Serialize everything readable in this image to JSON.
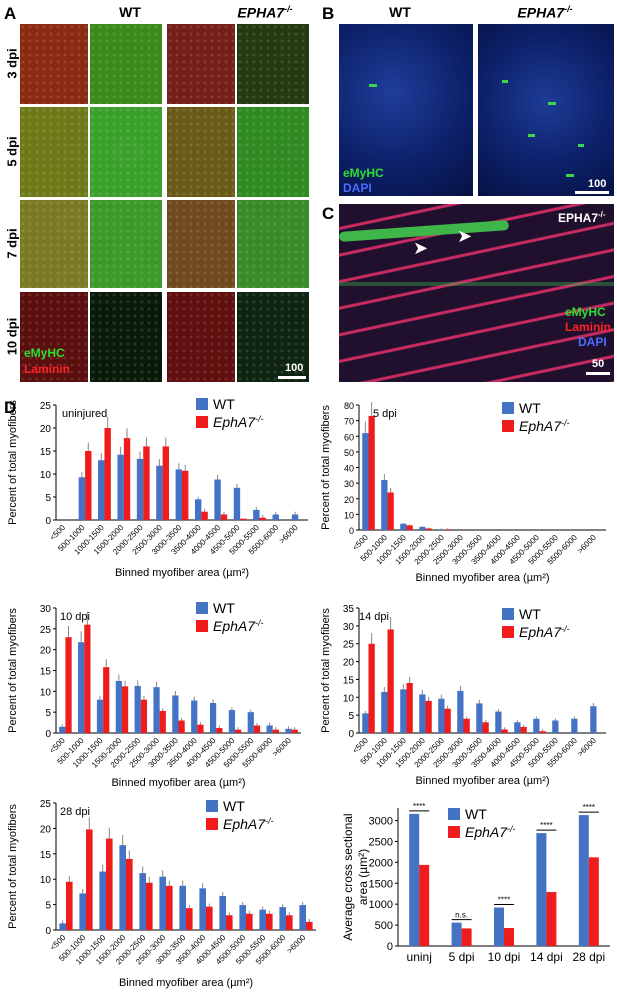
{
  "panels": {
    "A": "A",
    "B": "B",
    "C": "C",
    "D": "D"
  },
  "panelA": {
    "col_wt": "WT",
    "col_ko": "EPHA7",
    "col_ko_sup": "-/-",
    "rows": [
      "3 dpi",
      "5 dpi",
      "7 dpi",
      "10 dpi"
    ],
    "label_green": "eMyHC",
    "label_red": "Laminin",
    "scale": "100"
  },
  "panelB": {
    "col_wt": "WT",
    "col_ko": "EPHA7",
    "col_ko_sup": "-/-",
    "label_green": "eMyHC",
    "label_blue": "DAPI",
    "scale": "100"
  },
  "panelC": {
    "title": "EPHA7",
    "title_sup": "-/-",
    "label_green": "eMyHC",
    "label_red": "Laminin",
    "label_blue": "DAPI",
    "scale": "50"
  },
  "colors": {
    "wt": "#4472c4",
    "ko": "#ee1c1c"
  },
  "legend": {
    "wt": "WT",
    "ko": "EphA7",
    "ko_sup": "-/-"
  },
  "axis_text": {
    "ylabel": "Percent of total myofibers",
    "xlabel": "Binned myofiber area (µm²)",
    "bar_ylabel_1": "Average cross sectional",
    "bar_ylabel_2": "area (µm²)"
  },
  "chart_data": [
    {
      "type": "bar",
      "title": "uninjured",
      "categories": [
        "<500",
        "500-1000",
        "1000-1500",
        "1500-2000",
        "2000-2500",
        "2500-3000",
        "3000-3500",
        "3500-4000",
        "4000-4500",
        "4500-5000",
        "5000-5500",
        "5500-6000",
        ">6000"
      ],
      "ylim": [
        0,
        25
      ],
      "yticks": [
        0,
        5,
        10,
        15,
        20,
        25
      ],
      "series": [
        {
          "name": "WT",
          "values": [
            0,
            9.3,
            13,
            14.2,
            13.3,
            11.8,
            11,
            4.5,
            8.8,
            7,
            2.2,
            1.2,
            1.2
          ]
        },
        {
          "name": "EphA7-/-",
          "values": [
            0,
            15,
            20,
            17.8,
            16,
            16,
            10.7,
            1.8,
            1.2,
            0.3,
            0.5,
            0,
            0
          ]
        }
      ]
    },
    {
      "type": "bar",
      "title": "5 dpi",
      "categories": [
        "<500",
        "500-1000",
        "1000-1500",
        "1500-2000",
        "2000-2500",
        "2500-3000",
        "3000-3500",
        "3500-4000",
        "4000-4500",
        "4500-5000",
        "5000-5500",
        "5500-6000",
        ">6000"
      ],
      "ylim": [
        0,
        80
      ],
      "yticks": [
        0,
        10,
        20,
        30,
        40,
        50,
        60,
        70,
        80
      ],
      "series": [
        {
          "name": "WT",
          "values": [
            62,
            32,
            4,
            2,
            0.5,
            0,
            0,
            0,
            0,
            0,
            0,
            0,
            0
          ]
        },
        {
          "name": "EphA7-/-",
          "values": [
            73,
            24,
            3,
            1,
            0.5,
            0,
            0,
            0,
            0,
            0,
            0,
            0,
            0
          ]
        }
      ]
    },
    {
      "type": "bar",
      "title": "10 dpi",
      "categories": [
        "<500",
        "500-1000",
        "1000-1500",
        "1500-2000",
        "2000-2500",
        "2500-3000",
        "3000-3500",
        "3500-4000",
        "4000-4500",
        "4500-5000",
        "5000-5500",
        "5500-6000",
        ">6000"
      ],
      "ylim": [
        0,
        30
      ],
      "yticks": [
        0,
        5,
        10,
        15,
        20,
        25,
        30
      ],
      "series": [
        {
          "name": "WT",
          "values": [
            1.5,
            21.8,
            8,
            12.5,
            11.3,
            11,
            9,
            7.8,
            7.2,
            5.5,
            5,
            1.8,
            1
          ]
        },
        {
          "name": "EphA7-/-",
          "values": [
            23,
            26,
            15.8,
            11.2,
            8,
            5.3,
            3,
            2,
            1.2,
            0.8,
            1.8,
            0.8,
            0.8
          ]
        }
      ]
    },
    {
      "type": "bar",
      "title": "14 dpi",
      "categories": [
        "<500",
        "500-1000",
        "1000-1500",
        "1500-2000",
        "2000-2500",
        "2500-3000",
        "3000-3500",
        "3500-4000",
        "4000-4500",
        "4500-5000",
        "5000-5500",
        "5500-6000",
        ">6000"
      ],
      "ylim": [
        0,
        35
      ],
      "yticks": [
        0,
        5,
        10,
        15,
        20,
        25,
        30,
        35
      ],
      "series": [
        {
          "name": "WT",
          "values": [
            5.5,
            11.5,
            12.2,
            10.8,
            9.6,
            11.8,
            8.3,
            6,
            3,
            4,
            3.5,
            4,
            7.5
          ]
        },
        {
          "name": "EphA7-/-",
          "values": [
            25,
            29,
            14,
            9,
            6.8,
            4,
            3,
            1,
            1.7,
            0.5,
            0,
            0,
            0
          ]
        }
      ]
    },
    {
      "type": "bar",
      "title": "28 dpi",
      "categories": [
        "<500",
        "500-1000",
        "1000-1500",
        "1500-2000",
        "2000-2500",
        "2500-3000",
        "3000-3500",
        "3500-4000",
        "4000-4500",
        "4500-5000",
        "5000-5500",
        "5500-6000",
        ">6000"
      ],
      "ylim": [
        0,
        25
      ],
      "yticks": [
        0,
        5,
        10,
        15,
        20,
        25
      ],
      "series": [
        {
          "name": "WT",
          "values": [
            1.3,
            7.2,
            11.5,
            16.7,
            11.2,
            10.5,
            8.7,
            8.2,
            6.7,
            4.9,
            4,
            4.5,
            4.9
          ]
        },
        {
          "name": "EphA7-/-",
          "values": [
            9.5,
            19.8,
            18,
            14,
            9.3,
            8.7,
            4.3,
            4.6,
            2.9,
            3.2,
            3.2,
            2.9,
            1.6
          ]
        }
      ]
    },
    {
      "type": "bar",
      "title": "",
      "categories": [
        "uninj",
        "5 dpi",
        "10 dpi",
        "14 dpi",
        "28 dpi"
      ],
      "ylim": [
        0,
        3000
      ],
      "yticks": [
        0,
        500,
        1000,
        1500,
        2000,
        2500,
        3000
      ],
      "significance": [
        "****",
        "n.s.",
        "****",
        "****",
        "****"
      ],
      "series": [
        {
          "name": "WT",
          "values": [
            3160,
            560,
            920,
            2700,
            3130
          ]
        },
        {
          "name": "EphA7-/-",
          "values": [
            1940,
            420,
            430,
            1290,
            2120
          ]
        }
      ]
    }
  ]
}
